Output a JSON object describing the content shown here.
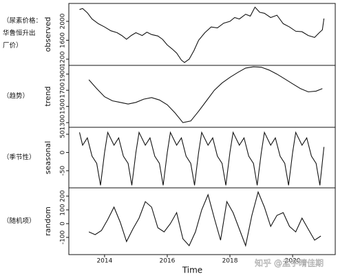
{
  "chart_data": [
    {
      "type": "line",
      "y_label": "observed",
      "annotation": "（尿素价格：华鲁恒升出厂价）",
      "xlim": [
        2012.86,
        2021.36
      ],
      "ylim": [
        1069,
        2378
      ],
      "yticks": [
        1200,
        1600,
        2000
      ],
      "x": [
        2013.2,
        2013.3,
        2013.45,
        2013.6,
        2013.8,
        2014.0,
        2014.2,
        2014.4,
        2014.55,
        2014.7,
        2014.85,
        2015.0,
        2015.2,
        2015.35,
        2015.5,
        2015.7,
        2015.85,
        2016.0,
        2016.15,
        2016.3,
        2016.45,
        2016.55,
        2016.7,
        2016.85,
        2017.0,
        2017.2,
        2017.4,
        2017.6,
        2017.8,
        2018.0,
        2018.15,
        2018.3,
        2018.5,
        2018.65,
        2018.8,
        2018.95,
        2019.1,
        2019.3,
        2019.5,
        2019.7,
        2019.9,
        2020.1,
        2020.3,
        2020.5,
        2020.7,
        2020.85,
        2020.95,
        2021.0
      ],
      "values": [
        2250,
        2270,
        2180,
        2050,
        1950,
        1880,
        1800,
        1760,
        1700,
        1620,
        1700,
        1760,
        1700,
        1770,
        1720,
        1690,
        1620,
        1500,
        1420,
        1330,
        1180,
        1130,
        1200,
        1380,
        1600,
        1760,
        1880,
        1860,
        1960,
        2000,
        2080,
        2050,
        2150,
        2110,
        2300,
        2190,
        2170,
        2080,
        2130,
        1950,
        1880,
        1790,
        1780,
        1700,
        1660,
        1760,
        1820,
        2060
      ]
    },
    {
      "type": "line",
      "y_label": "trend",
      "annotation": "（趋势）",
      "xlim": [
        2012.86,
        2021.36
      ],
      "ylim": [
        1242,
        2008
      ],
      "yticks": [
        1300,
        1500,
        1700,
        1900
      ],
      "x": [
        2013.5,
        2013.75,
        2014.0,
        2014.25,
        2014.5,
        2014.75,
        2015.0,
        2015.25,
        2015.5,
        2015.75,
        2016.0,
        2016.25,
        2016.5,
        2016.75,
        2017.0,
        2017.25,
        2017.5,
        2017.75,
        2018.0,
        2018.25,
        2018.5,
        2018.75,
        2019.0,
        2019.25,
        2019.5,
        2019.75,
        2020.0,
        2020.25,
        2020.5,
        2020.75,
        2020.95
      ],
      "values": [
        1830,
        1720,
        1620,
        1570,
        1550,
        1530,
        1550,
        1590,
        1610,
        1580,
        1520,
        1420,
        1300,
        1320,
        1440,
        1570,
        1700,
        1790,
        1860,
        1920,
        1975,
        1990,
        1985,
        1950,
        1900,
        1840,
        1780,
        1720,
        1680,
        1690,
        1720
      ]
    },
    {
      "type": "line",
      "y_label": "seasonal",
      "annotation": "（季节性）",
      "xlim": [
        2012.86,
        2021.36
      ],
      "ylim": [
        -97,
        69
      ],
      "yticks": [
        -50,
        0,
        50
      ],
      "x": [
        2013.2,
        2013.3,
        2013.45,
        2013.6,
        2013.75,
        2013.87,
        2014.0,
        2014.1,
        2014.3,
        2014.45,
        2014.6,
        2014.75,
        2014.87,
        2015.0,
        2015.1,
        2015.3,
        2015.45,
        2015.6,
        2015.75,
        2015.87,
        2016.0,
        2016.1,
        2016.3,
        2016.45,
        2016.6,
        2016.75,
        2016.87,
        2017.0,
        2017.1,
        2017.3,
        2017.45,
        2017.6,
        2017.75,
        2017.87,
        2018.0,
        2018.1,
        2018.3,
        2018.45,
        2018.6,
        2018.75,
        2018.87,
        2019.0,
        2019.1,
        2019.3,
        2019.45,
        2019.6,
        2019.75,
        2019.87,
        2020.0,
        2020.1,
        2020.3,
        2020.45,
        2020.6,
        2020.75,
        2020.87,
        2021.0
      ],
      "values": [
        55,
        20,
        40,
        -10,
        -30,
        -90,
        0,
        55,
        20,
        40,
        -10,
        -30,
        -90,
        0,
        55,
        20,
        40,
        -10,
        -30,
        -90,
        0,
        55,
        20,
        40,
        -10,
        -30,
        -90,
        0,
        55,
        20,
        40,
        -10,
        -30,
        -90,
        0,
        55,
        20,
        40,
        -10,
        -30,
        -90,
        0,
        55,
        20,
        40,
        -10,
        -30,
        -90,
        0,
        55,
        20,
        40,
        -10,
        -30,
        -90,
        15
      ]
    },
    {
      "type": "line",
      "y_label": "random",
      "annotation": "（随机项）",
      "x_label": "Time",
      "xlim": [
        2012.86,
        2021.36
      ],
      "ylim": [
        -225,
        260
      ],
      "yticks": [
        -100,
        0,
        100,
        200
      ],
      "xticks": [
        2014,
        2016,
        2018,
        2020
      ],
      "x": [
        2013.5,
        2013.7,
        2013.9,
        2014.1,
        2014.3,
        2014.5,
        2014.7,
        2014.9,
        2015.1,
        2015.3,
        2015.5,
        2015.7,
        2015.9,
        2016.1,
        2016.3,
        2016.5,
        2016.7,
        2016.9,
        2017.1,
        2017.3,
        2017.5,
        2017.7,
        2017.9,
        2018.1,
        2018.3,
        2018.5,
        2018.7,
        2018.9,
        2019.1,
        2019.3,
        2019.5,
        2019.7,
        2019.9,
        2020.1,
        2020.3,
        2020.5,
        2020.7,
        2020.9
      ],
      "values": [
        -60,
        -80,
        -50,
        30,
        120,
        10,
        -130,
        -40,
        40,
        160,
        120,
        -30,
        -60,
        0,
        80,
        -110,
        -160,
        -60,
        100,
        210,
        40,
        -120,
        160,
        80,
        -40,
        -160,
        60,
        230,
        120,
        -20,
        60,
        80,
        -20,
        -60,
        40,
        -40,
        -120,
        -90
      ]
    }
  ],
  "watermark": "知乎 @孟宇晴佳期"
}
